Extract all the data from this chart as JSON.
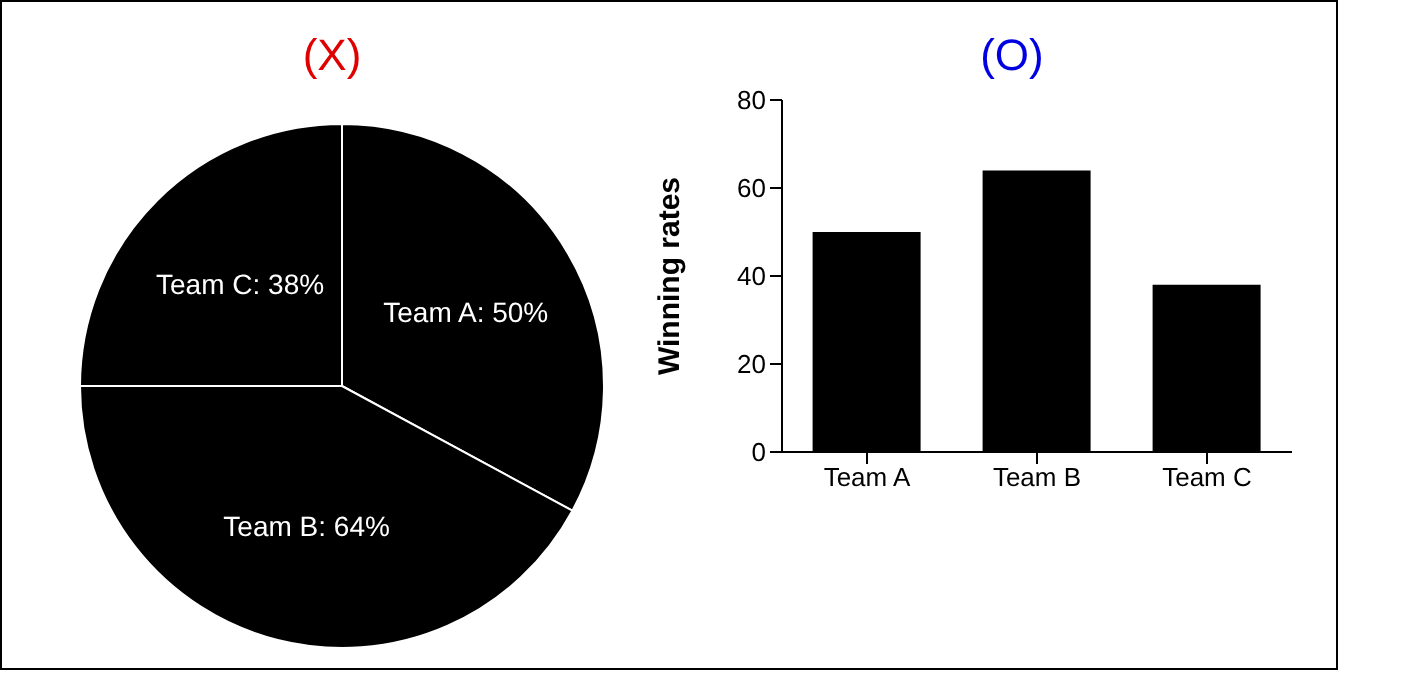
{
  "chart_data": [
    {
      "type": "pie",
      "title": "(X)",
      "categories": [
        "Team A",
        "Team B",
        "Team C"
      ],
      "values": [
        50,
        64,
        38
      ],
      "colors": [
        "#000000",
        "#000000",
        "#000000"
      ],
      "value_labels": [
        "50%",
        "64%",
        "38%"
      ]
    },
    {
      "type": "bar",
      "title": "(O)",
      "ylabel": "Winning rates",
      "categories": [
        "Team A",
        "Team B",
        "Team C"
      ],
      "values": [
        50,
        64,
        38
      ],
      "color": "#000000",
      "ylim": [
        0,
        80
      ],
      "yticks": [
        0,
        20,
        40,
        60,
        80
      ],
      "grid": false
    }
  ]
}
